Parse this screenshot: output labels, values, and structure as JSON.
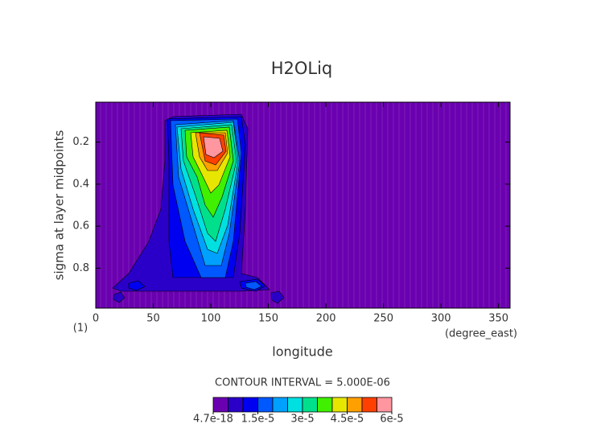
{
  "chart_data": {
    "type": "contour",
    "title": "H2OLiq",
    "x_label": "longitude",
    "x_units": "(degree_east)",
    "y_label": "sigma at layer midpoints",
    "annotation": "(1)",
    "xlim": [
      0,
      360
    ],
    "xticks": [
      0,
      50,
      100,
      150,
      200,
      250,
      300,
      350
    ],
    "ylim": [
      0.99,
      0.01
    ],
    "yticks": [
      0.2,
      0.4,
      0.6,
      0.8
    ],
    "contour_interval": "CONTOUR INTERVAL = 5.000E-06",
    "colorbar": {
      "ticks": [
        {
          "value": 4.7e-18,
          "label": "4.7e-18"
        },
        {
          "value": 1.5e-05,
          "label": "1.5e-5"
        },
        {
          "value": 3e-05,
          "label": "3e-5"
        },
        {
          "value": 4.5e-05,
          "label": "4.5e-5"
        },
        {
          "value": 6e-05,
          "label": "6e-5"
        }
      ],
      "colors": [
        "#6a00b0",
        "#2a00c8",
        "#0000f0",
        "#0058ff",
        "#00a0ff",
        "#00e0e0",
        "#00e08c",
        "#40f000",
        "#e6e600",
        "#ffa000",
        "#ff4000",
        "#ff96a0"
      ]
    }
  }
}
